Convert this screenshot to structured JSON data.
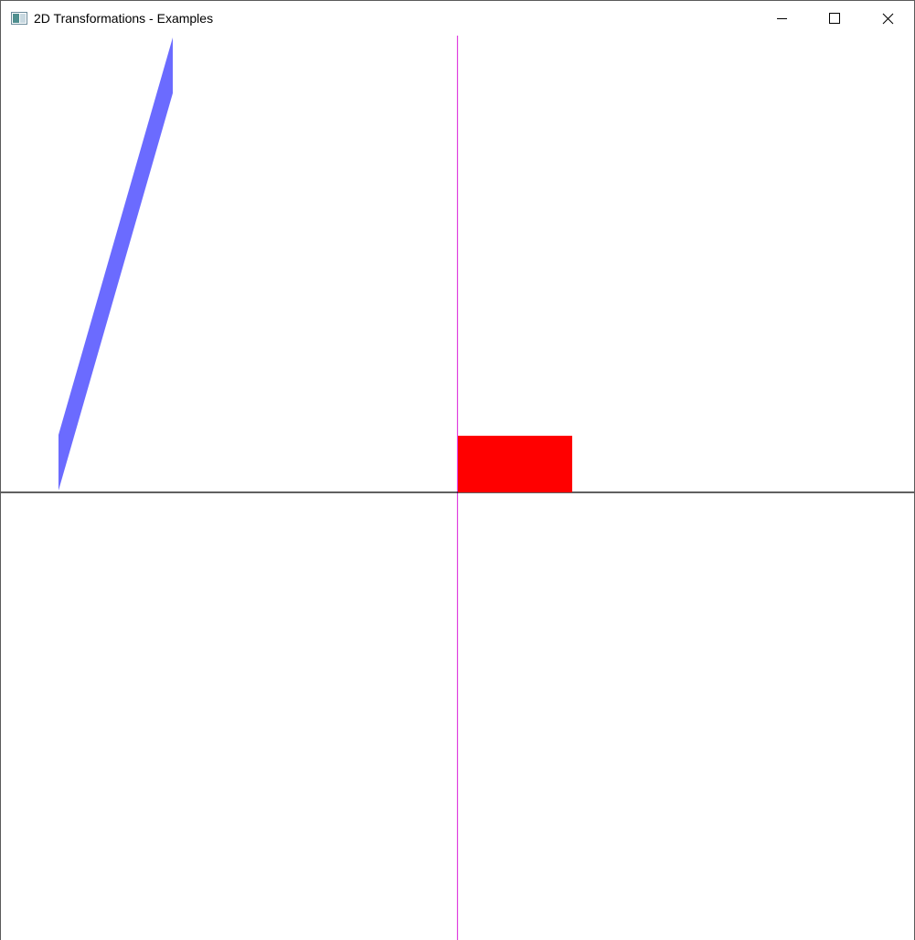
{
  "window": {
    "title": "2D Transformations - Examples",
    "icon": "app-window-icon",
    "controls": {
      "minimize_icon": "minimize-icon",
      "maximize_icon": "maximize-icon",
      "close_icon": "close-icon"
    }
  },
  "scene": {
    "background": "#ffffff",
    "x_axis_color": "#000000",
    "y_axis_color": "#e040e0",
    "rectangle_color": "#ff0000",
    "sheared_shape_color": "#6b6bff"
  }
}
